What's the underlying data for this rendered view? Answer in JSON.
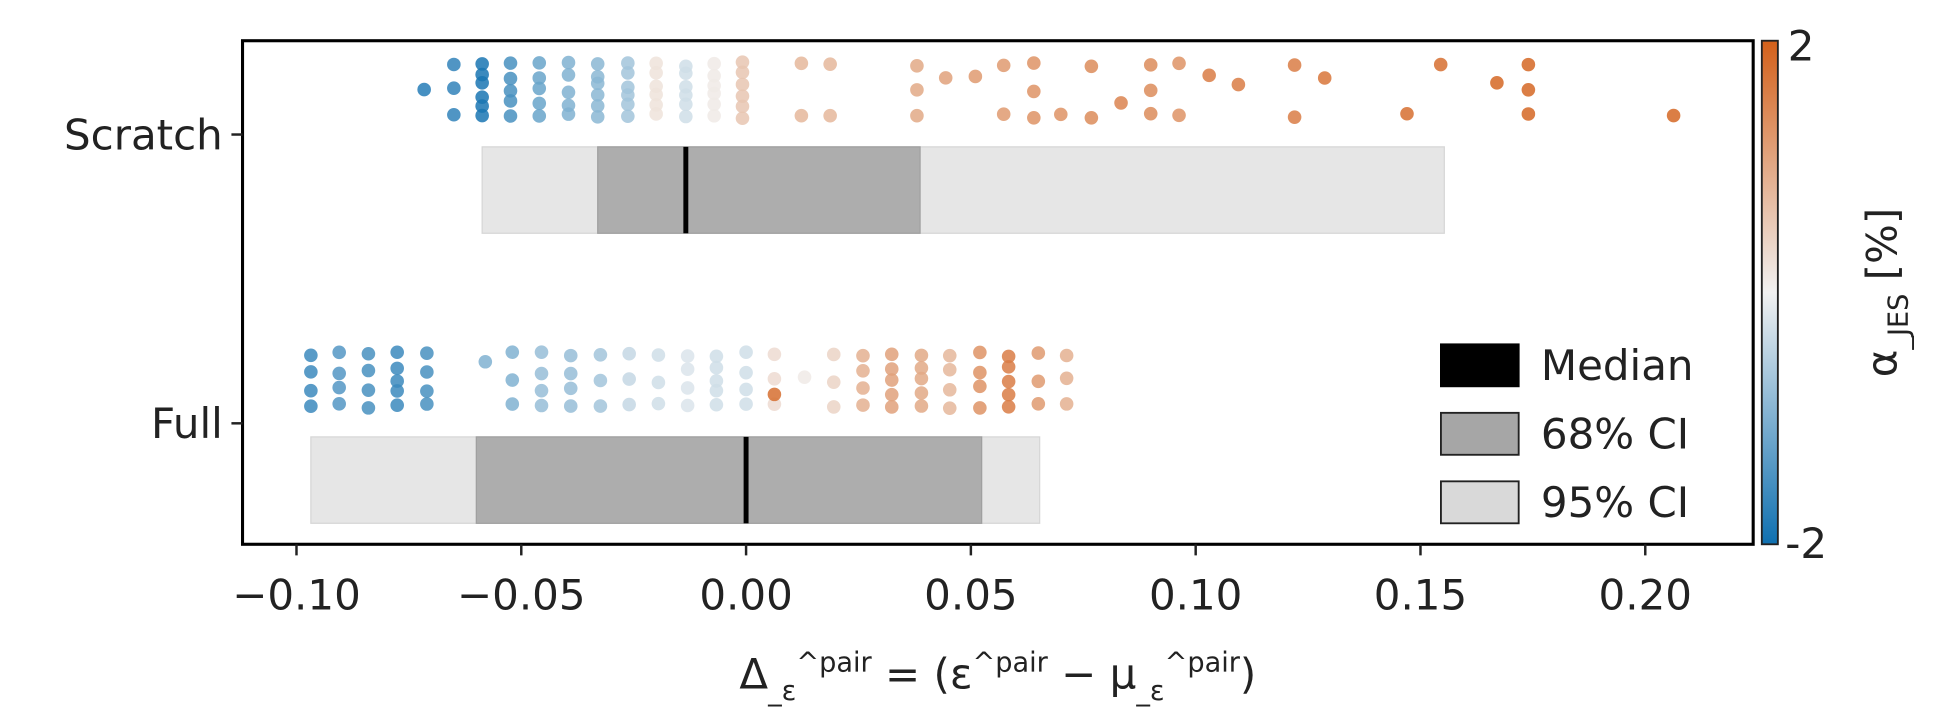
{
  "chart_data": {
    "type": "strip-with-interval-bars",
    "xlabel": "Δ_ε^pair = (ε^pair − μ_ε^pair)",
    "xlim": [
      -0.112,
      0.224
    ],
    "xticks": [
      -0.1,
      -0.05,
      0.0,
      0.05,
      0.1,
      0.15,
      0.2
    ],
    "xtick_labels": [
      "−0.10",
      "−0.05",
      "0.00",
      "0.05",
      "0.10",
      "0.15",
      "0.20"
    ],
    "categories": [
      "Scratch",
      "Full"
    ],
    "grid": false,
    "colorbar": {
      "label": "α_JES [%]",
      "min": -2,
      "max": 2,
      "min_label": "-2",
      "max_label": "2",
      "colors": {
        "low": "#0f70b0",
        "mid": "#f1f1f1",
        "high": "#d3601a"
      }
    },
    "legend": {
      "placement": "lower-right",
      "entries": [
        {
          "label": "Median",
          "color": "#000000"
        },
        {
          "label": "68% CI",
          "color": "#a6a6a6"
        },
        {
          "label": "95% CI",
          "color": "#d9d9d9"
        }
      ]
    },
    "intervals": [
      {
        "category": "Scratch",
        "median": -0.0134,
        "ci68": [
          -0.033,
          0.0387
        ],
        "ci95": [
          -0.0587,
          0.1553
        ]
      },
      {
        "category": "Full",
        "median": 0.0,
        "ci68": [
          -0.06,
          0.0524
        ],
        "ci95": [
          -0.0968,
          0.0653
        ]
      }
    ],
    "points": {
      "Scratch": [
        {
          "x": -0.0716,
          "n": 1,
          "alpha": -1.8
        },
        {
          "x": -0.065,
          "n": 3,
          "alpha": -1.7
        },
        {
          "x": -0.0587,
          "n": 6,
          "alpha": -1.9
        },
        {
          "x": -0.0524,
          "n": 5,
          "alpha": -1.5
        },
        {
          "x": -0.046,
          "n": 5,
          "alpha": -1.2
        },
        {
          "x": -0.0395,
          "n": 5,
          "alpha": -1.0
        },
        {
          "x": -0.033,
          "n": 6,
          "alpha": -0.9
        },
        {
          "x": -0.0263,
          "n": 6,
          "alpha": -0.7
        },
        {
          "x": -0.02,
          "n": 6,
          "alpha": 0.2
        },
        {
          "x": -0.0134,
          "n": 6,
          "alpha": -0.3
        },
        {
          "x": -0.0071,
          "n": 6,
          "alpha": 0.1
        },
        {
          "x": -0.0008,
          "n": 6,
          "alpha": 0.6
        },
        {
          "x": 0.0123,
          "n": 2,
          "alpha": 0.8
        },
        {
          "x": 0.0187,
          "n": 2,
          "alpha": 0.8
        },
        {
          "x": 0.038,
          "n": 3,
          "alpha": 1.0
        },
        {
          "x": 0.0444,
          "n": 1,
          "alpha": 1.1
        },
        {
          "x": 0.051,
          "n": 1,
          "alpha": 1.2
        },
        {
          "x": 0.0573,
          "n": 2,
          "alpha": 1.2
        },
        {
          "x": 0.064,
          "n": 3,
          "alpha": 1.3
        },
        {
          "x": 0.07,
          "n": 1,
          "alpha": 1.3
        },
        {
          "x": 0.0768,
          "n": 2,
          "alpha": 1.4
        },
        {
          "x": 0.0834,
          "n": 1,
          "alpha": 1.5
        },
        {
          "x": 0.09,
          "n": 3,
          "alpha": 1.4
        },
        {
          "x": 0.0963,
          "n": 2,
          "alpha": 1.3
        },
        {
          "x": 0.103,
          "n": 1,
          "alpha": 1.6
        },
        {
          "x": 0.1095,
          "n": 1,
          "alpha": 1.6
        },
        {
          "x": 0.122,
          "n": 2,
          "alpha": 1.6
        },
        {
          "x": 0.1287,
          "n": 1,
          "alpha": 1.7
        },
        {
          "x": 0.147,
          "n": 1,
          "alpha": 1.8
        },
        {
          "x": 0.1545,
          "n": 1,
          "alpha": 1.8
        },
        {
          "x": 0.167,
          "n": 1,
          "alpha": 1.9
        },
        {
          "x": 0.174,
          "n": 3,
          "alpha": 1.9
        },
        {
          "x": 0.2063,
          "n": 1,
          "alpha": 1.9
        }
      ],
      "Full": [
        {
          "x": -0.0968,
          "n": 4,
          "alpha": -1.6
        },
        {
          "x": -0.0905,
          "n": 4,
          "alpha": -1.4
        },
        {
          "x": -0.084,
          "n": 4,
          "alpha": -1.5
        },
        {
          "x": -0.0776,
          "n": 5,
          "alpha": -1.6
        },
        {
          "x": -0.071,
          "n": 4,
          "alpha": -1.5
        },
        {
          "x": -0.058,
          "n": 1,
          "alpha": -1.0
        },
        {
          "x": -0.052,
          "n": 3,
          "alpha": -1.0
        },
        {
          "x": -0.0455,
          "n": 4,
          "alpha": -0.8
        },
        {
          "x": -0.039,
          "n": 4,
          "alpha": -0.8
        },
        {
          "x": -0.0324,
          "n": 3,
          "alpha": -0.7
        },
        {
          "x": -0.026,
          "n": 3,
          "alpha": -0.4
        },
        {
          "x": -0.0195,
          "n": 3,
          "alpha": -0.3
        },
        {
          "x": -0.013,
          "n": 4,
          "alpha": -0.2
        },
        {
          "x": -0.0066,
          "n": 5,
          "alpha": -0.3
        },
        {
          "x": 0.0,
          "n": 4,
          "alpha": -0.3
        },
        {
          "x": 0.0063,
          "n": 3,
          "alpha": 0.3
        },
        {
          "x": 0.0063,
          "n": 1,
          "alpha": 1.8
        },
        {
          "x": 0.013,
          "n": 1,
          "alpha": 0.1
        },
        {
          "x": 0.0195,
          "n": 3,
          "alpha": 0.4
        },
        {
          "x": 0.026,
          "n": 4,
          "alpha": 0.9
        },
        {
          "x": 0.0324,
          "n": 5,
          "alpha": 1.1
        },
        {
          "x": 0.039,
          "n": 5,
          "alpha": 1.0
        },
        {
          "x": 0.0453,
          "n": 4,
          "alpha": 0.8
        },
        {
          "x": 0.052,
          "n": 4,
          "alpha": 1.3
        },
        {
          "x": 0.0584,
          "n": 5,
          "alpha": 1.6
        },
        {
          "x": 0.065,
          "n": 3,
          "alpha": 1.2
        },
        {
          "x": 0.0713,
          "n": 3,
          "alpha": 0.9
        }
      ]
    }
  }
}
